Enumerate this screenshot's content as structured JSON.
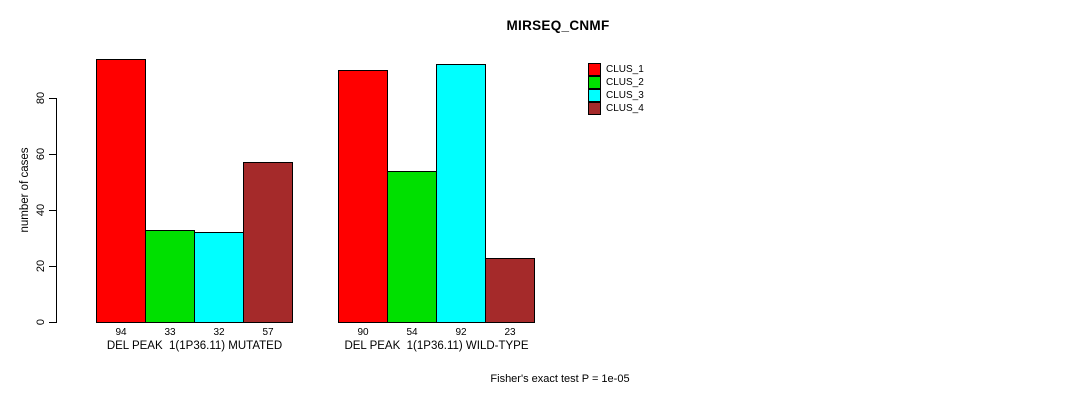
{
  "chart_data": {
    "type": "bar",
    "title": "MIRSEQ_CNMF",
    "ylabel": "number of cases",
    "xlabel": "",
    "yticks": [
      0,
      20,
      40,
      60,
      80
    ],
    "ylim": [
      0,
      94
    ],
    "grid": false,
    "legend_position": "right-outside",
    "bar_border_color": "#000000",
    "background_color": "#ffffff",
    "categories": [
      "DEL PEAK  1(1P36.11) MUTATED",
      "DEL PEAK  1(1P36.11) WILD-TYPE"
    ],
    "groups": [
      {
        "label": "DEL PEAK  1(1P36.11) MUTATED",
        "values": [
          94,
          33,
          32,
          57
        ]
      },
      {
        "label": "DEL PEAK  1(1P36.11) WILD-TYPE",
        "values": [
          90,
          54,
          92,
          23
        ]
      }
    ],
    "series": [
      {
        "name": "CLUS_1",
        "color": "#FF0000"
      },
      {
        "name": "CLUS_2",
        "color": "#00E000"
      },
      {
        "name": "CLUS_3",
        "color": "#00FFFF"
      },
      {
        "name": "CLUS_4",
        "color": "#A52A2A"
      }
    ],
    "value_labels_shown": true,
    "footnote": "Fisher's exact test P = 1e-05"
  }
}
